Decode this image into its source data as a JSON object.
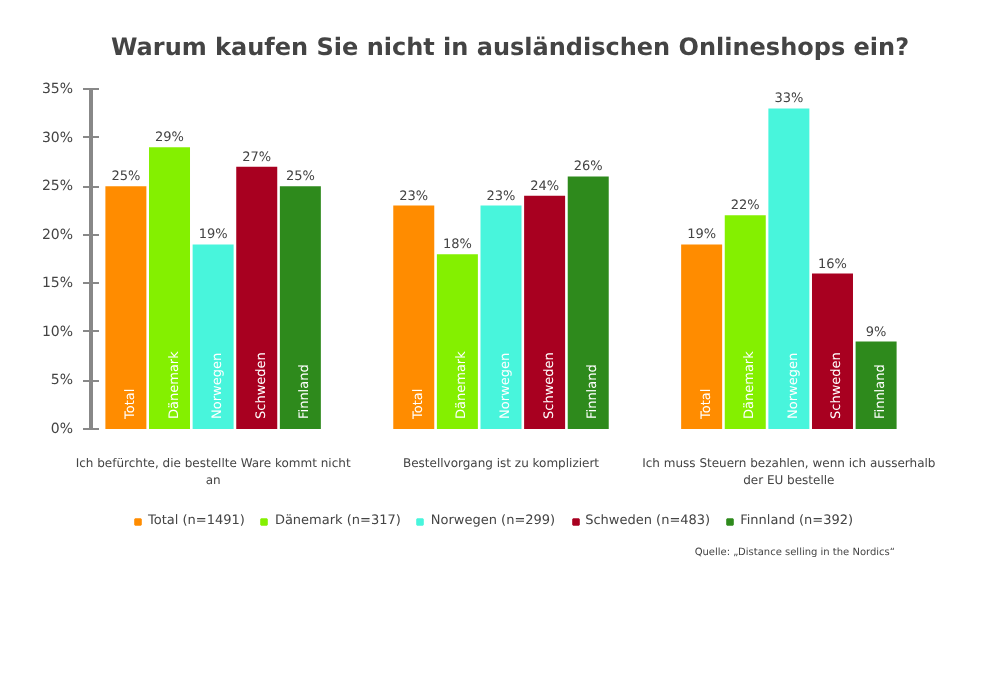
{
  "chart_data": {
    "type": "bar",
    "title": "Warum kaufen Sie nicht in ausländischen Onlineshops ein?",
    "categories": [
      "Ich befürchte, die bestellte Ware kommt nicht an",
      "Bestellvorgang ist zu kompliziert",
      "Ich muss Steuern bezahlen, wenn ich ausserhalb der EU bestelle"
    ],
    "series": [
      {
        "name": "Total (n=1491)",
        "color": "#ff8c00",
        "values": [
          25,
          23,
          19
        ],
        "value_labels": [
          "25%",
          "23%",
          "19%"
        ]
      },
      {
        "name": "Dänemark (n=317)",
        "color": "#84f000",
        "values": [
          29,
          18,
          22
        ],
        "value_labels": [
          "29%",
          "18%",
          "22%"
        ]
      },
      {
        "name": "Norwegen (n=299)",
        "color": "#48f5dc",
        "values": [
          19,
          23,
          33
        ],
        "value_labels": [
          "19%",
          "23%",
          "33%"
        ]
      },
      {
        "name": "Schweden (n=483)",
        "color": "#a80020",
        "values": [
          27,
          24,
          16
        ],
        "value_labels": [
          "27%",
          "24%",
          "16%"
        ]
      },
      {
        "name": "Finnland (n=392)",
        "color": "#2e8a1c",
        "values": [
          25,
          26,
          9
        ],
        "value_labels": [
          "25%",
          "26%",
          "9%"
        ]
      }
    ],
    "ylim": [
      0,
      35
    ],
    "yticks": [
      {
        "value": 0,
        "label": "0%"
      },
      {
        "value": 5,
        "label": "5%"
      },
      {
        "value": 10,
        "label": "10%"
      },
      {
        "value": 15,
        "label": "15%"
      },
      {
        "value": 20,
        "label": "20%"
      },
      {
        "value": 25,
        "label": "25%"
      },
      {
        "value": 30,
        "label": "30%"
      },
      {
        "value": 35,
        "label": "35%"
      }
    ],
    "grid": false,
    "legend": "bottom",
    "annotations": [
      "Total",
      "Dänemark",
      "Norwegen",
      "Schweden",
      "Finnland",
      "Quelle: „Distance selling in the Nordics“"
    ]
  }
}
